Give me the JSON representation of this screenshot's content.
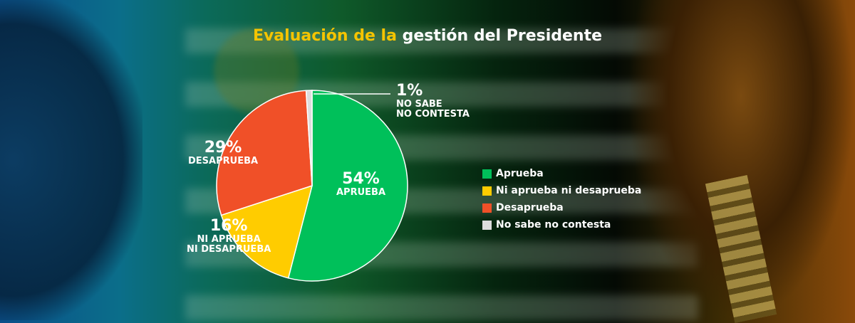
{
  "chart_data": {
    "type": "pie",
    "title_part1": "Evaluación de la",
    "title_part2": "gestión del Presidente",
    "slices": [
      {
        "name": "Aprueba",
        "value": 54,
        "label_pct": "54%",
        "label_name": "APRUEBA",
        "color": "#00c05a"
      },
      {
        "name": "Ni aprueba ni desaprueba",
        "value": 16,
        "label_pct": "16%",
        "label_name1": "NI APRUEBA",
        "label_name2": "NI DESAPRUEBA",
        "color": "#ffcc00"
      },
      {
        "name": "Desaprueba",
        "value": 29,
        "label_pct": "29%",
        "label_name": "DESAPRUEBA",
        "color": "#f05028"
      },
      {
        "name": "No sabe no contesta",
        "value": 1,
        "label_pct": "1%",
        "label_name1": "NO SABE",
        "label_name2": "NO CONTESTA",
        "color": "#dddddd"
      }
    ],
    "legend_placement": "right"
  }
}
